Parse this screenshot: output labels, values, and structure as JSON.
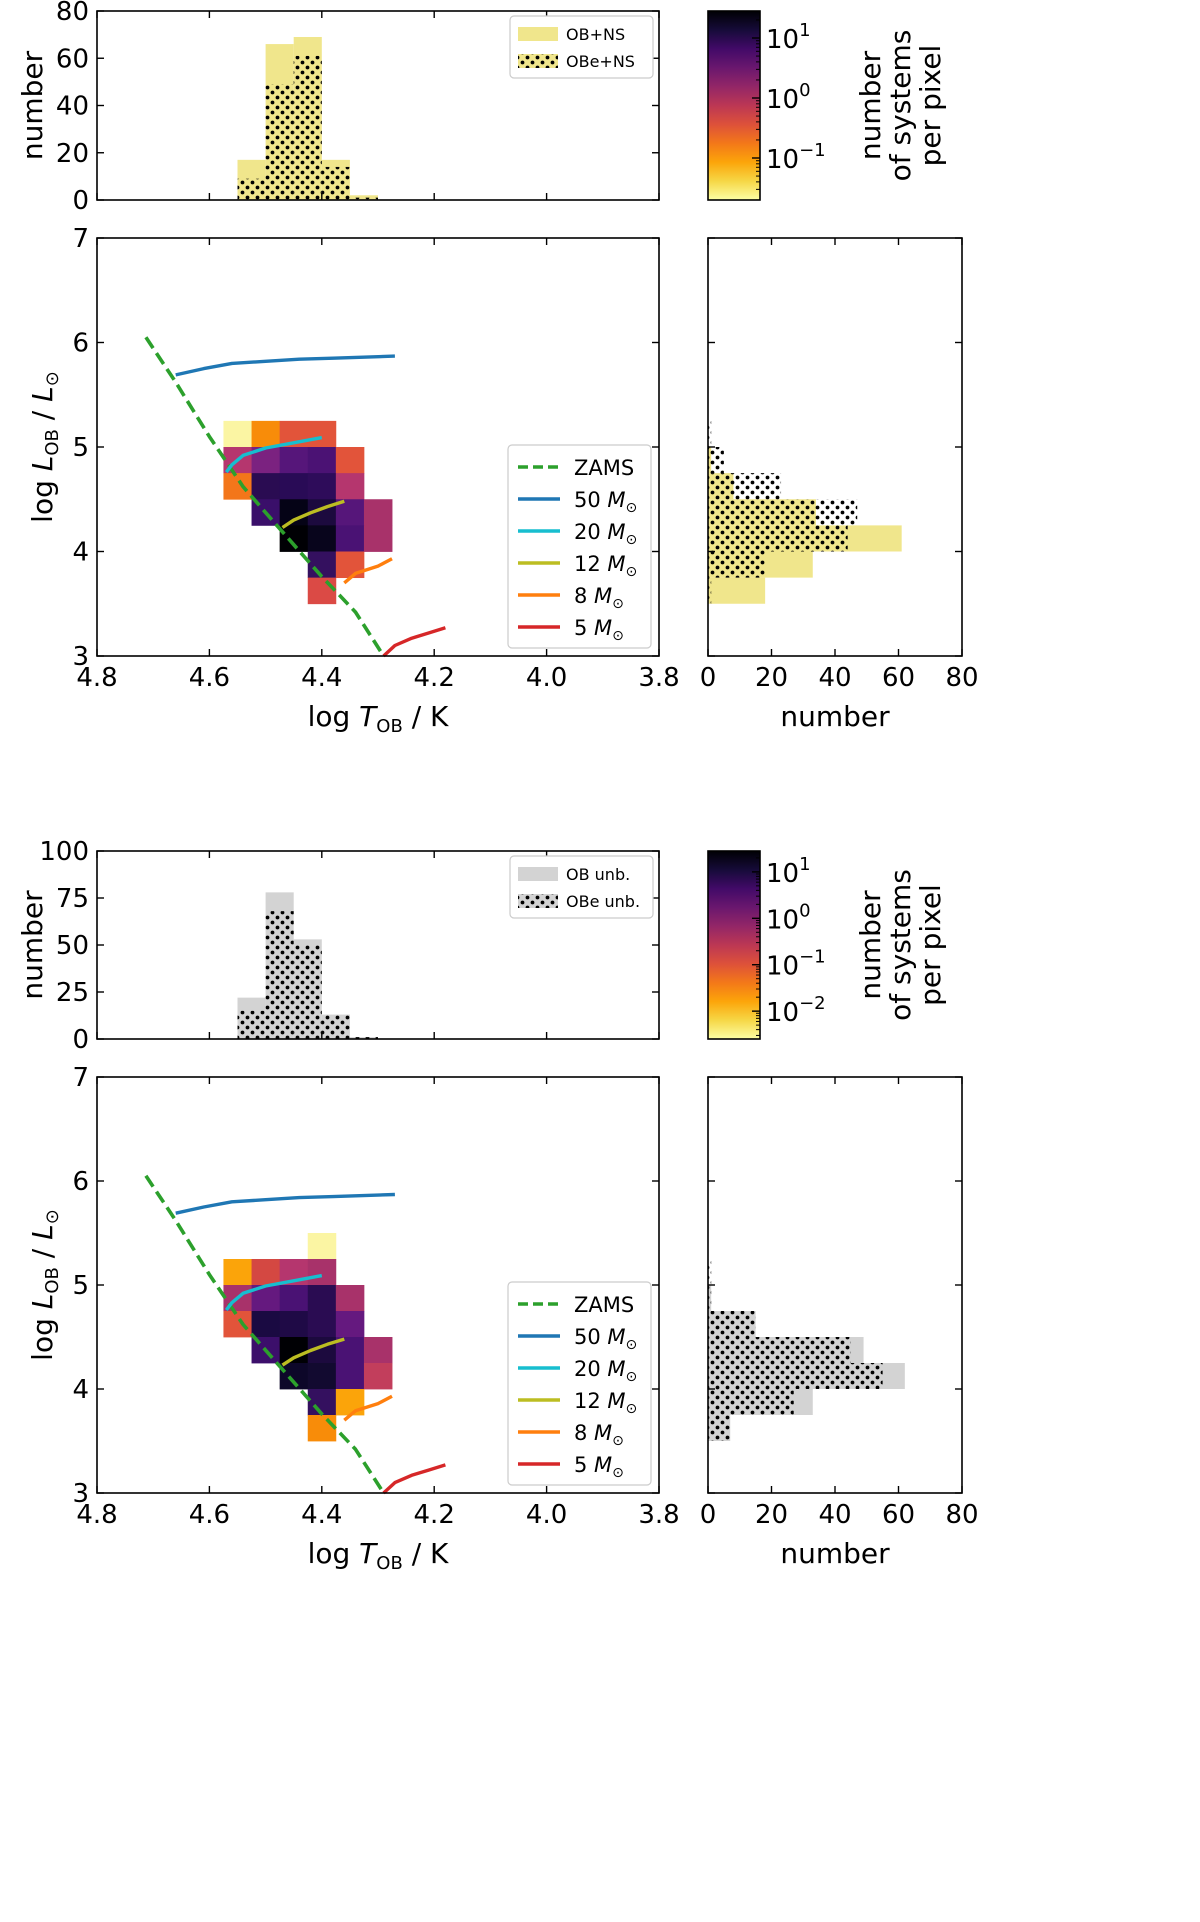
{
  "chart_data": [
    {
      "id": "top",
      "type": "heatmap",
      "title": "",
      "hr_diagram": {
        "xlabel": "log T_OB / K",
        "ylabel": "log L_OB / L_sun",
        "xlim": [
          4.8,
          3.8
        ],
        "ylim": [
          3,
          7
        ],
        "x_ticks": [
          "4.8",
          "4.6",
          "4.4",
          "4.2",
          "4.0",
          "3.8"
        ],
        "y_ticks": [
          "3",
          "4",
          "5",
          "6",
          "7"
        ],
        "cells": [
          {
            "t": 4.55,
            "l": 5.125,
            "c": "#fbf5a3"
          },
          {
            "t": 4.5,
            "l": 5.125,
            "c": "#f88c09"
          },
          {
            "t": 4.45,
            "l": 5.125,
            "c": "#e2543a"
          },
          {
            "t": 4.4,
            "l": 5.125,
            "c": "#e2543a"
          },
          {
            "t": 4.55,
            "l": 4.875,
            "c": "#b5366e"
          },
          {
            "t": 4.5,
            "l": 4.875,
            "c": "#7b2280"
          },
          {
            "t": 4.45,
            "l": 4.875,
            "c": "#56167a"
          },
          {
            "t": 4.4,
            "l": 4.875,
            "c": "#4b1274"
          },
          {
            "t": 4.35,
            "l": 4.875,
            "c": "#e2543a"
          },
          {
            "t": 4.55,
            "l": 4.625,
            "c": "#f3761a"
          },
          {
            "t": 4.5,
            "l": 4.625,
            "c": "#2a0c52"
          },
          {
            "t": 4.45,
            "l": 4.625,
            "c": "#290b56"
          },
          {
            "t": 4.4,
            "l": 4.625,
            "c": "#2e0c5a"
          },
          {
            "t": 4.35,
            "l": 4.625,
            "c": "#b5366e"
          },
          {
            "t": 4.5,
            "l": 4.375,
            "c": "#3a0f6a"
          },
          {
            "t": 4.45,
            "l": 4.375,
            "c": "#050316"
          },
          {
            "t": 4.4,
            "l": 4.375,
            "c": "#1c0a3e"
          },
          {
            "t": 4.35,
            "l": 4.375,
            "c": "#56167a"
          },
          {
            "t": 4.3,
            "l": 4.375,
            "c": "#a8326a"
          },
          {
            "t": 4.45,
            "l": 4.125,
            "c": "#000004"
          },
          {
            "t": 4.4,
            "l": 4.125,
            "c": "#08051c"
          },
          {
            "t": 4.35,
            "l": 4.125,
            "c": "#4a1274"
          },
          {
            "t": 4.3,
            "l": 4.125,
            "c": "#a8326a"
          },
          {
            "t": 4.4,
            "l": 3.875,
            "c": "#34105f"
          },
          {
            "t": 4.35,
            "l": 3.875,
            "c": "#e2543a"
          },
          {
            "t": 4.4,
            "l": 3.625,
            "c": "#db4a45"
          }
        ],
        "lines": [
          {
            "name": "ZAMS",
            "label": "ZAMS",
            "mass": "",
            "color": "#2ca02c",
            "dashed": true,
            "pts": [
              [
                4.713,
                6.05
              ],
              [
                4.66,
                5.62
              ],
              [
                4.6,
                5.1
              ],
              [
                4.54,
                4.62
              ],
              [
                4.48,
                4.25
              ],
              [
                4.4,
                3.76
              ],
              [
                4.34,
                3.42
              ],
              [
                4.29,
                3.0
              ]
            ]
          },
          {
            "name": "50-msun",
            "label": "50",
            "mass": "50",
            "color": "#1f77b4",
            "dashed": false,
            "pts": [
              [
                4.66,
                5.69
              ],
              [
                4.61,
                5.75
              ],
              [
                4.56,
                5.8
              ],
              [
                4.5,
                5.82
              ],
              [
                4.44,
                5.84
              ],
              [
                4.38,
                5.85
              ],
              [
                4.27,
                5.87
              ]
            ]
          },
          {
            "name": "20-msun",
            "label": "20",
            "mass": "20",
            "color": "#17becf",
            "dashed": false,
            "pts": [
              [
                4.57,
                4.76
              ],
              [
                4.56,
                4.83
              ],
              [
                4.54,
                4.92
              ],
              [
                4.5,
                4.99
              ],
              [
                4.45,
                5.04
              ],
              [
                4.4,
                5.09
              ]
            ]
          },
          {
            "name": "12-msun",
            "label": "12",
            "mass": "12",
            "color": "#bcbd22",
            "dashed": false,
            "pts": [
              [
                4.47,
                4.23
              ],
              [
                4.45,
                4.3
              ],
              [
                4.42,
                4.37
              ],
              [
                4.39,
                4.43
              ],
              [
                4.36,
                4.48
              ]
            ]
          },
          {
            "name": "8-msun",
            "label": "8",
            "mass": "8",
            "color": "#ff7f0e",
            "dashed": false,
            "pts": [
              [
                4.36,
                3.7
              ],
              [
                4.34,
                3.79
              ],
              [
                4.3,
                3.86
              ],
              [
                4.275,
                3.93
              ]
            ]
          },
          {
            "name": "5-msun",
            "label": "5",
            "mass": "5",
            "color": "#d62728",
            "dashed": false,
            "pts": [
              [
                4.29,
                3.0
              ],
              [
                4.27,
                3.1
              ],
              [
                4.24,
                3.17
              ],
              [
                4.21,
                3.22
              ],
              [
                4.18,
                3.27
              ]
            ]
          }
        ],
        "unit_symbol": "M☉"
      },
      "temp_hist": {
        "ylabel": "number",
        "ylim": [
          0,
          80
        ],
        "y_ticks": [
          "0",
          "20",
          "40",
          "60",
          "80"
        ],
        "bin_edges": [
          4.55,
          4.5,
          4.45,
          4.4,
          4.35,
          4.3
        ],
        "all_counts": [
          17,
          66,
          69,
          17,
          2
        ],
        "e_counts": [
          9,
          49,
          61,
          14,
          1
        ],
        "legend": {
          "all_label": "OB+NS",
          "e_label": "OBe+NS"
        }
      },
      "lum_hist": {
        "xlabel": "number",
        "xlim": [
          0,
          80
        ],
        "x_ticks": [
          "0",
          "20",
          "40",
          "60",
          "80"
        ],
        "bin_edges": [
          3.5,
          3.75,
          4.0,
          4.25,
          4.5,
          4.75,
          5.0,
          5.25
        ],
        "all_counts": [
          18,
          33,
          61,
          34,
          8,
          1,
          0
        ],
        "e_counts": [
          1,
          18,
          44,
          47,
          23,
          5,
          1
        ]
      },
      "colorbar": {
        "label_line1": "number",
        "label_line2": "of systems",
        "label_line3": "per pixel",
        "tick_labels": [
          "10",
          "10",
          "10"
        ],
        "tick_exponents": [
          "1",
          "0",
          "−1"
        ],
        "log_min": -1.7,
        "log_max": 1.45,
        "tick_values": [
          1,
          0,
          -1
        ]
      },
      "style": {
        "fill": "#f0e68c",
        "hatch_bg": "#f0e68c"
      }
    },
    {
      "id": "bottom",
      "type": "heatmap",
      "title": "",
      "hr_diagram": {
        "xlabel": "log T_OB / K",
        "ylabel": "log L_OB / L_sun",
        "xlim": [
          4.8,
          3.8
        ],
        "ylim": [
          3,
          7
        ],
        "x_ticks": [
          "4.8",
          "4.6",
          "4.4",
          "4.2",
          "4.0",
          "3.8"
        ],
        "y_ticks": [
          "3",
          "4",
          "5",
          "6",
          "7"
        ],
        "cells": [
          {
            "t": 4.4,
            "l": 5.375,
            "c": "#fbf5a3"
          },
          {
            "t": 4.55,
            "l": 5.125,
            "c": "#fba40a"
          },
          {
            "t": 4.5,
            "l": 5.125,
            "c": "#d44842"
          },
          {
            "t": 4.45,
            "l": 5.125,
            "c": "#b5366e"
          },
          {
            "t": 4.4,
            "l": 5.125,
            "c": "#a8326a"
          },
          {
            "t": 4.55,
            "l": 4.875,
            "c": "#a8326a"
          },
          {
            "t": 4.5,
            "l": 4.875,
            "c": "#65197f"
          },
          {
            "t": 4.45,
            "l": 4.875,
            "c": "#4a1274"
          },
          {
            "t": 4.4,
            "l": 4.875,
            "c": "#2a0c52"
          },
          {
            "t": 4.35,
            "l": 4.875,
            "c": "#a8326a"
          },
          {
            "t": 4.55,
            "l": 4.625,
            "c": "#e2543a"
          },
          {
            "t": 4.5,
            "l": 4.625,
            "c": "#1a0a42"
          },
          {
            "t": 4.45,
            "l": 4.625,
            "c": "#1f0a46"
          },
          {
            "t": 4.4,
            "l": 4.625,
            "c": "#2a0c52"
          },
          {
            "t": 4.35,
            "l": 4.625,
            "c": "#65197f"
          },
          {
            "t": 4.5,
            "l": 4.375,
            "c": "#3c0f6b"
          },
          {
            "t": 4.45,
            "l": 4.375,
            "c": "#000004"
          },
          {
            "t": 4.4,
            "l": 4.375,
            "c": "#1c0a3e"
          },
          {
            "t": 4.35,
            "l": 4.375,
            "c": "#4a1274"
          },
          {
            "t": 4.3,
            "l": 4.375,
            "c": "#a8326a"
          },
          {
            "t": 4.45,
            "l": 4.125,
            "c": "#0d0729"
          },
          {
            "t": 4.4,
            "l": 4.125,
            "c": "#120a30"
          },
          {
            "t": 4.35,
            "l": 4.125,
            "c": "#4a1274"
          },
          {
            "t": 4.3,
            "l": 4.125,
            "c": "#c23e5c"
          },
          {
            "t": 4.4,
            "l": 3.875,
            "c": "#34105f"
          },
          {
            "t": 4.35,
            "l": 3.875,
            "c": "#fba40a"
          },
          {
            "t": 4.4,
            "l": 3.625,
            "c": "#f88c09"
          }
        ],
        "lines": [
          {
            "name": "ZAMS",
            "label": "ZAMS",
            "mass": "",
            "color": "#2ca02c",
            "dashed": true,
            "pts": [
              [
                4.713,
                6.05
              ],
              [
                4.66,
                5.62
              ],
              [
                4.6,
                5.1
              ],
              [
                4.54,
                4.62
              ],
              [
                4.48,
                4.25
              ],
              [
                4.4,
                3.76
              ],
              [
                4.34,
                3.42
              ],
              [
                4.29,
                3.0
              ]
            ]
          },
          {
            "name": "50-msun",
            "label": "50",
            "mass": "50",
            "color": "#1f77b4",
            "dashed": false,
            "pts": [
              [
                4.66,
                5.69
              ],
              [
                4.61,
                5.75
              ],
              [
                4.56,
                5.8
              ],
              [
                4.5,
                5.82
              ],
              [
                4.44,
                5.84
              ],
              [
                4.38,
                5.85
              ],
              [
                4.27,
                5.87
              ]
            ]
          },
          {
            "name": "20-msun",
            "label": "20",
            "mass": "20",
            "color": "#17becf",
            "dashed": false,
            "pts": [
              [
                4.57,
                4.76
              ],
              [
                4.56,
                4.83
              ],
              [
                4.54,
                4.92
              ],
              [
                4.5,
                4.99
              ],
              [
                4.45,
                5.04
              ],
              [
                4.4,
                5.09
              ]
            ]
          },
          {
            "name": "12-msun",
            "label": "12",
            "mass": "12",
            "color": "#bcbd22",
            "dashed": false,
            "pts": [
              [
                4.47,
                4.23
              ],
              [
                4.45,
                4.3
              ],
              [
                4.42,
                4.37
              ],
              [
                4.39,
                4.43
              ],
              [
                4.36,
                4.48
              ]
            ]
          },
          {
            "name": "8-msun",
            "label": "8",
            "mass": "8",
            "color": "#ff7f0e",
            "dashed": false,
            "pts": [
              [
                4.36,
                3.7
              ],
              [
                4.34,
                3.79
              ],
              [
                4.3,
                3.86
              ],
              [
                4.275,
                3.93
              ]
            ]
          },
          {
            "name": "5-msun",
            "label": "5",
            "mass": "5",
            "color": "#d62728",
            "dashed": false,
            "pts": [
              [
                4.29,
                3.0
              ],
              [
                4.27,
                3.1
              ],
              [
                4.24,
                3.17
              ],
              [
                4.21,
                3.22
              ],
              [
                4.18,
                3.27
              ]
            ]
          }
        ],
        "unit_symbol": "M☉"
      },
      "temp_hist": {
        "ylabel": "number",
        "ylim": [
          0,
          100
        ],
        "y_ticks": [
          "0",
          "25",
          "50",
          "75",
          "100"
        ],
        "bin_edges": [
          4.55,
          4.5,
          4.45,
          4.4,
          4.35,
          4.3
        ],
        "all_counts": [
          22,
          78,
          53,
          13,
          1
        ],
        "e_counts": [
          15,
          68,
          50,
          13,
          1
        ],
        "legend": {
          "all_label": "OB unb.",
          "e_label": "OBe unb."
        }
      },
      "lum_hist": {
        "xlabel": "number",
        "xlim": [
          0,
          80
        ],
        "x_ticks": [
          "0",
          "20",
          "40",
          "60",
          "80"
        ],
        "bin_edges": [
          3.5,
          3.75,
          4.0,
          4.25,
          4.5,
          4.75,
          5.0,
          5.25
        ],
        "all_counts": [
          7,
          33,
          62,
          49,
          15,
          1,
          0
        ],
        "e_counts": [
          7,
          27,
          55,
          45,
          15,
          1,
          1
        ]
      },
      "colorbar": {
        "label_line1": "number",
        "label_line2": "of systems",
        "label_line3": "per pixel",
        "tick_labels": [
          "10",
          "10",
          "10",
          "10"
        ],
        "tick_exponents": [
          "1",
          "0",
          "−1",
          "−2"
        ],
        "log_min": -2.6,
        "log_max": 1.45,
        "tick_values": [
          1,
          0,
          -1,
          -2
        ]
      },
      "style": {
        "fill": "#d3d3d3",
        "hatch_bg": "#d3d3d3"
      }
    }
  ]
}
